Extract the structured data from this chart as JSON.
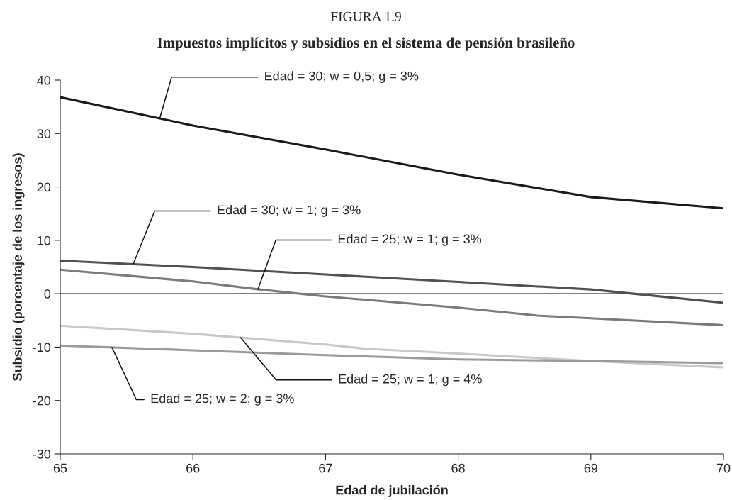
{
  "chart_data": {
    "type": "line",
    "title": "FIGURA 1.9",
    "subtitle": "Impuestos implícitos y subsidios en el sistema de pensión brasileño",
    "xlabel": "Edad de jubilación",
    "ylabel": "Subsidio (porcentaje de los ingresos)",
    "series": [
      {
        "name": "Edad = 30; w = 0,5; g = 3%",
        "color": "#1a1a1a",
        "x": [
          65,
          66,
          67,
          68,
          69,
          70
        ],
        "values": [
          36.8,
          31.5,
          27,
          22.3,
          18.1,
          16.0
        ]
      },
      {
        "name": "Edad = 30; w = 1; g = 3%",
        "color": "#505050",
        "x": [
          65,
          66,
          67,
          68,
          69,
          70
        ],
        "values": [
          6.2,
          5.0,
          3.6,
          2.2,
          0.8,
          -1.7
        ]
      },
      {
        "name": "Edad = 25; w = 1; g = 3%",
        "color": "#7a7a7a",
        "x": [
          65,
          66,
          66.5,
          67,
          68,
          68.6,
          69,
          70
        ],
        "values": [
          4.5,
          2.3,
          0.8,
          -0.5,
          -2.6,
          -4.1,
          -4.6,
          -5.9
        ]
      },
      {
        "name": "Edad = 25; w = 1; g = 4%",
        "color": "#c8c8c8",
        "x": [
          65,
          66,
          67,
          67.3,
          68,
          69,
          70
        ],
        "values": [
          -6.0,
          -7.5,
          -9.5,
          -10.3,
          -11.2,
          -12.6,
          -13.8
        ]
      },
      {
        "name": "Edad = 25; w = 2; g = 3%",
        "color": "#9a9a9a",
        "x": [
          65,
          66,
          67,
          68,
          69,
          70
        ],
        "values": [
          -9.7,
          -10.6,
          -11.5,
          -12.3,
          -12.6,
          -13.0
        ]
      }
    ],
    "xlim": [
      65,
      70
    ],
    "xticks": [
      65,
      66,
      67,
      68,
      69,
      70
    ],
    "ylim": [
      -30,
      40
    ],
    "yticks": [
      -30,
      -20,
      -10,
      0,
      10,
      20,
      30,
      40
    ],
    "ref_lines": [
      {
        "axis": "y",
        "value": 0,
        "color": "#000000"
      }
    ],
    "grid": false,
    "legend": false,
    "marker": "none",
    "line_style": "solid"
  }
}
